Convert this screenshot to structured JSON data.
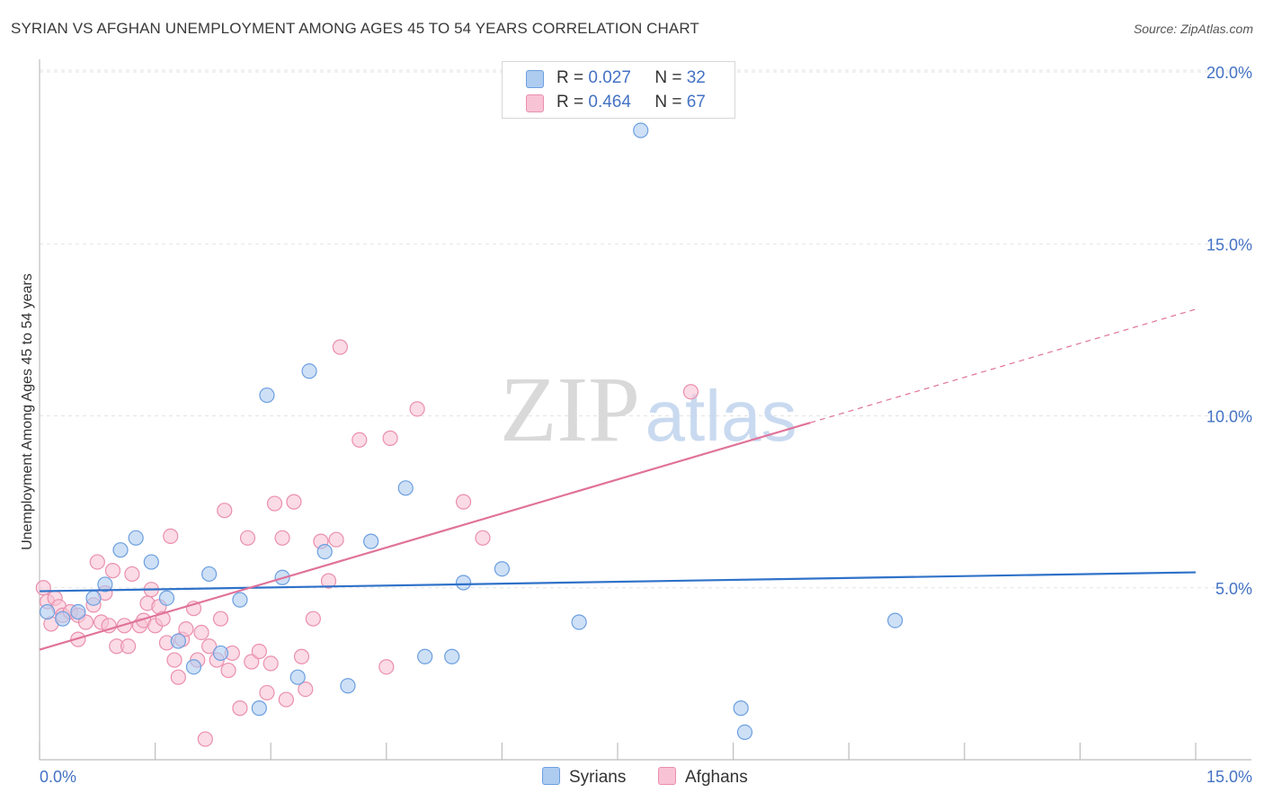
{
  "header": {
    "title": "SYRIAN VS AFGHAN UNEMPLOYMENT AMONG AGES 45 TO 54 YEARS CORRELATION CHART",
    "source": "Source: ZipAtlas.com"
  },
  "watermark": {
    "part1": "ZIP",
    "part2": "atlas"
  },
  "legend": {
    "r_label": "R =",
    "n_label": "N =",
    "rows": [
      {
        "r": "0.027",
        "n": "32"
      },
      {
        "r": "0.464",
        "n": "67"
      }
    ]
  },
  "colors": {
    "syrians_fill": "#aecbf0",
    "syrians_stroke": "#6c9fe0",
    "syrians_line": "#2f72c9",
    "afghans_fill": "#f8c3d4",
    "afghans_stroke": "#ea8fad",
    "afghans_line": "#e0739a",
    "tick_label": "#4472c4",
    "grid": "#e3e3e3"
  },
  "chart_data": {
    "type": "scatter",
    "title": "SYRIAN VS AFGHAN UNEMPLOYMENT AMONG AGES 45 TO 54 YEARS CORRELATION CHART",
    "xlabel": "",
    "ylabel": "Unemployment Among Ages 45 to 54 years",
    "xlim": [
      0,
      15
    ],
    "ylim": [
      0,
      20
    ],
    "x_tick_labels": [
      "0.0%",
      "15.0%"
    ],
    "y_ticks": [
      5,
      10,
      15,
      20
    ],
    "y_tick_labels": [
      "5.0%",
      "10.0%",
      "15.0%",
      "20.0%"
    ],
    "legend_position": "bottom-center",
    "series": [
      {
        "name": "Syrians",
        "r": 0.027,
        "n": 32,
        "trend": {
          "x0": 0,
          "y0": 4.9,
          "x1": 15,
          "y1": 5.45
        },
        "points": [
          [
            0.1,
            4.3
          ],
          [
            0.3,
            4.1
          ],
          [
            0.5,
            4.3
          ],
          [
            0.7,
            4.7
          ],
          [
            0.85,
            5.1
          ],
          [
            1.05,
            6.1
          ],
          [
            1.25,
            6.45
          ],
          [
            1.45,
            5.75
          ],
          [
            1.65,
            4.7
          ],
          [
            1.8,
            3.45
          ],
          [
            2.0,
            2.7
          ],
          [
            2.2,
            5.4
          ],
          [
            2.35,
            3.1
          ],
          [
            2.6,
            4.65
          ],
          [
            2.85,
            1.5
          ],
          [
            2.95,
            10.6
          ],
          [
            3.15,
            5.3
          ],
          [
            3.35,
            2.4
          ],
          [
            3.5,
            11.3
          ],
          [
            3.7,
            6.05
          ],
          [
            4.0,
            2.15
          ],
          [
            4.3,
            6.35
          ],
          [
            4.75,
            7.9
          ],
          [
            5.0,
            3.0
          ],
          [
            5.35,
            3.0
          ],
          [
            5.5,
            5.15
          ],
          [
            6.0,
            5.55
          ],
          [
            7.0,
            4.0
          ],
          [
            7.8,
            18.3
          ],
          [
            9.1,
            1.5
          ],
          [
            9.15,
            0.8
          ],
          [
            11.1,
            4.05
          ]
        ]
      },
      {
        "name": "Afghans",
        "r": 0.464,
        "n": 67,
        "trend": {
          "x0": 0,
          "y0": 3.2,
          "x1": 10.0,
          "y1": 9.8
        },
        "trend_dashed": {
          "x0": 10.0,
          "y0": 9.8,
          "x1": 15,
          "y1": 13.1
        },
        "points": [
          [
            0.05,
            5.0
          ],
          [
            0.1,
            4.6
          ],
          [
            0.2,
            4.7
          ],
          [
            0.25,
            4.45
          ],
          [
            0.3,
            4.2
          ],
          [
            0.4,
            4.3
          ],
          [
            0.5,
            4.2
          ],
          [
            0.5,
            3.5
          ],
          [
            0.6,
            4.0
          ],
          [
            0.7,
            4.5
          ],
          [
            0.75,
            5.75
          ],
          [
            0.8,
            4.0
          ],
          [
            0.85,
            4.85
          ],
          [
            0.9,
            3.9
          ],
          [
            0.95,
            5.5
          ],
          [
            1.0,
            3.3
          ],
          [
            1.1,
            3.9
          ],
          [
            1.15,
            3.3
          ],
          [
            1.2,
            5.4
          ],
          [
            1.3,
            3.9
          ],
          [
            1.35,
            4.05
          ],
          [
            1.4,
            4.55
          ],
          [
            1.45,
            4.95
          ],
          [
            1.5,
            3.9
          ],
          [
            1.55,
            4.45
          ],
          [
            1.6,
            4.1
          ],
          [
            1.65,
            3.4
          ],
          [
            1.7,
            6.5
          ],
          [
            1.75,
            2.9
          ],
          [
            1.8,
            2.4
          ],
          [
            1.85,
            3.5
          ],
          [
            1.9,
            3.8
          ],
          [
            2.0,
            4.4
          ],
          [
            2.05,
            2.9
          ],
          [
            2.1,
            3.7
          ],
          [
            2.15,
            0.6
          ],
          [
            2.2,
            3.3
          ],
          [
            2.3,
            2.9
          ],
          [
            2.35,
            4.1
          ],
          [
            2.4,
            7.25
          ],
          [
            2.45,
            2.6
          ],
          [
            2.5,
            3.1
          ],
          [
            2.6,
            1.5
          ],
          [
            2.7,
            6.45
          ],
          [
            2.75,
            2.85
          ],
          [
            2.85,
            3.15
          ],
          [
            2.95,
            1.95
          ],
          [
            3.0,
            2.8
          ],
          [
            3.05,
            7.45
          ],
          [
            3.15,
            6.45
          ],
          [
            3.2,
            1.75
          ],
          [
            3.3,
            7.5
          ],
          [
            3.4,
            3.0
          ],
          [
            3.45,
            2.05
          ],
          [
            3.55,
            4.1
          ],
          [
            3.65,
            6.35
          ],
          [
            3.75,
            5.2
          ],
          [
            3.85,
            6.4
          ],
          [
            3.9,
            12.0
          ],
          [
            4.15,
            9.3
          ],
          [
            4.5,
            2.7
          ],
          [
            4.55,
            9.35
          ],
          [
            4.9,
            10.2
          ],
          [
            5.5,
            7.5
          ],
          [
            5.75,
            6.45
          ],
          [
            8.45,
            10.7
          ],
          [
            0.15,
            3.95
          ]
        ]
      }
    ]
  }
}
